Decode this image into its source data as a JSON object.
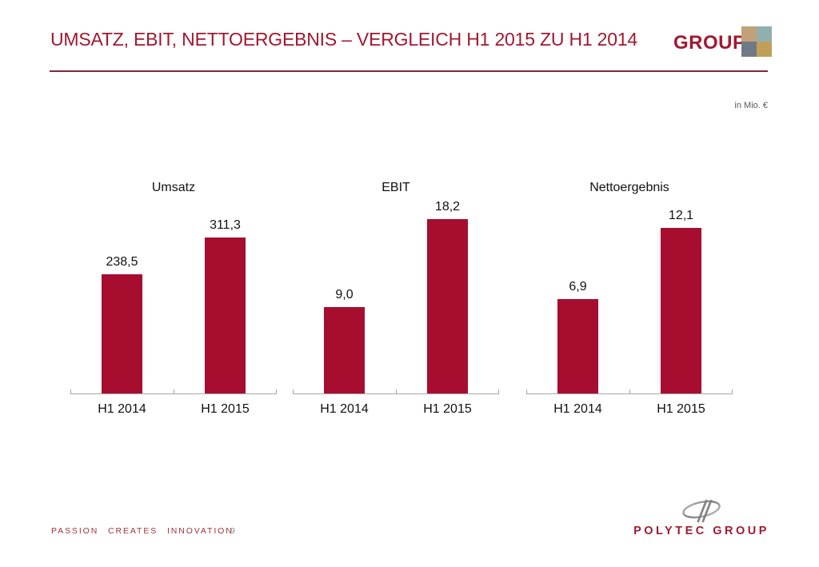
{
  "header": {
    "title": "UMSATZ, EBIT, NETTOERGEBNIS – VERGLEICH H1 2015 ZU H1 2014",
    "brand": "GROUP",
    "logo_colors": [
      "#C1A177",
      "#8FB0AC",
      "#707A86",
      "#C0A058"
    ]
  },
  "unit_note": "in Mio. €",
  "chart_data": [
    {
      "type": "bar",
      "title": "Umsatz",
      "categories": [
        "H1 2014",
        "H1 2015"
      ],
      "values": [
        238.5,
        311.3
      ],
      "value_labels": [
        "238,5",
        "311,3"
      ],
      "bar_color": "#A60D2F",
      "grid": false,
      "legend": false
    },
    {
      "type": "bar",
      "title": "EBIT",
      "categories": [
        "H1 2014",
        "H1 2015"
      ],
      "values": [
        9.0,
        18.2
      ],
      "value_labels": [
        "9,0",
        "18,2"
      ],
      "bar_color": "#A60D2F",
      "grid": false,
      "legend": false
    },
    {
      "type": "bar",
      "title": "Nettoergebnis",
      "categories": [
        "H1 2014",
        "H1 2015"
      ],
      "values": [
        6.9,
        12.1
      ],
      "value_labels": [
        "6,9",
        "12,1"
      ],
      "bar_color": "#A60D2F",
      "grid": false,
      "legend": false
    }
  ],
  "footer": {
    "tagline": "PASSION CREATES INNOVATION",
    "page_number": "9",
    "brand": "POLYTEC GROUP"
  },
  "colors": {
    "accent": "#A21830",
    "bar": "#A60D2F",
    "rule": "#80283A",
    "axis": "#A6A6A6",
    "muted_text": "#595959",
    "page_number": "#8C8C8C"
  }
}
